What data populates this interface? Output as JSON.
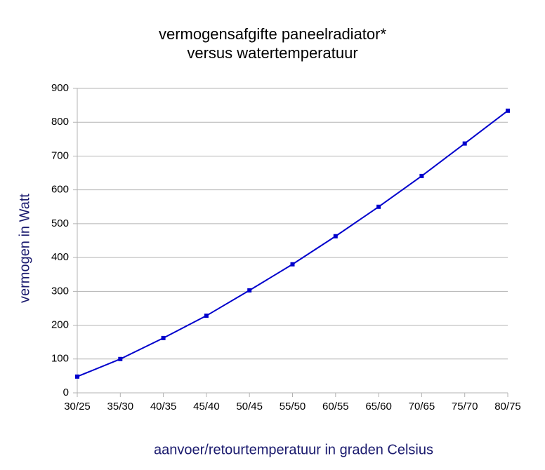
{
  "chart_data": {
    "type": "line",
    "title": [
      "vermogensafgifte paneelradiator*",
      "versus watertemperatuur"
    ],
    "x_label": "aanvoer/retourtemperatuur in graden Celsius",
    "y_label": "vermogen in Watt",
    "categories": [
      "30/25",
      "35/30",
      "40/35",
      "45/40",
      "50/45",
      "55/50",
      "60/55",
      "65/60",
      "70/65",
      "75/70",
      "80/75"
    ],
    "values": [
      48,
      100,
      162,
      228,
      303,
      380,
      463,
      550,
      641,
      737,
      834
    ],
    "color": "#0000cc",
    "ylim": [
      0,
      900
    ],
    "yticks": [
      0,
      100,
      200,
      300,
      400,
      500,
      600,
      700,
      800,
      900
    ],
    "grid": true
  }
}
